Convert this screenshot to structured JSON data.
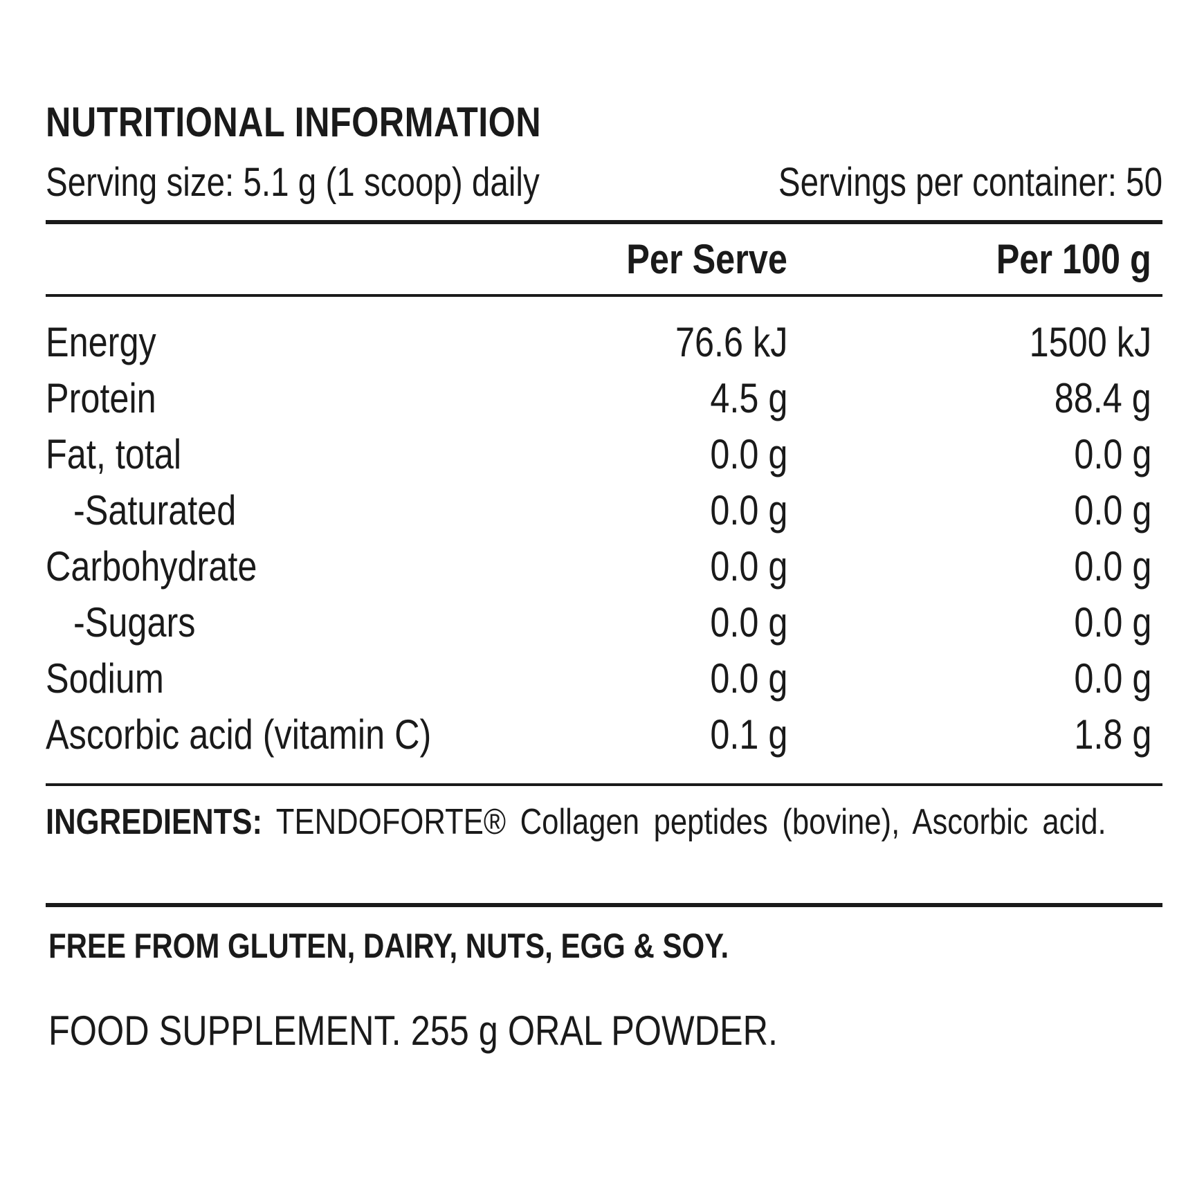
{
  "label": {
    "title": "NUTRITIONAL INFORMATION",
    "serving_size": "Serving size: 5.1 g (1 scoop) daily",
    "servings_per_container": "Servings per container: 50",
    "columns": {
      "per_serve": "Per Serve",
      "per_100g": "Per 100 g"
    },
    "rows": [
      {
        "name": "Energy",
        "per_serve": "76.6 kJ",
        "per_100g": "1500 kJ"
      },
      {
        "name": "Protein",
        "per_serve": "4.5 g",
        "per_100g": "88.4 g"
      },
      {
        "name": "Fat, total",
        "per_serve": "0.0 g",
        "per_100g": "0.0 g"
      },
      {
        "name": "-Saturated",
        "per_serve": "0.0 g",
        "per_100g": "0.0 g"
      },
      {
        "name": "Carbohydrate",
        "per_serve": "0.0 g",
        "per_100g": "0.0 g"
      },
      {
        "name": "-Sugars",
        "per_serve": "0.0 g",
        "per_100g": "0.0 g"
      },
      {
        "name": "Sodium",
        "per_serve": "0.0 g",
        "per_100g": "0.0 g"
      },
      {
        "name": "Ascorbic acid (vitamin C)",
        "per_serve": "0.1 g",
        "per_100g": "1.8 g"
      }
    ],
    "ingredients_label": "INGREDIENTS:",
    "ingredients_text": "TENDOFORTE® Collagen peptides (bovine), Ascorbic acid.",
    "free_from": "FREE FROM GLUTEN, DAIRY, NUTS, EGG & SOY.",
    "supplement": "FOOD SUPPLEMENT. 255 g ORAL POWDER."
  }
}
